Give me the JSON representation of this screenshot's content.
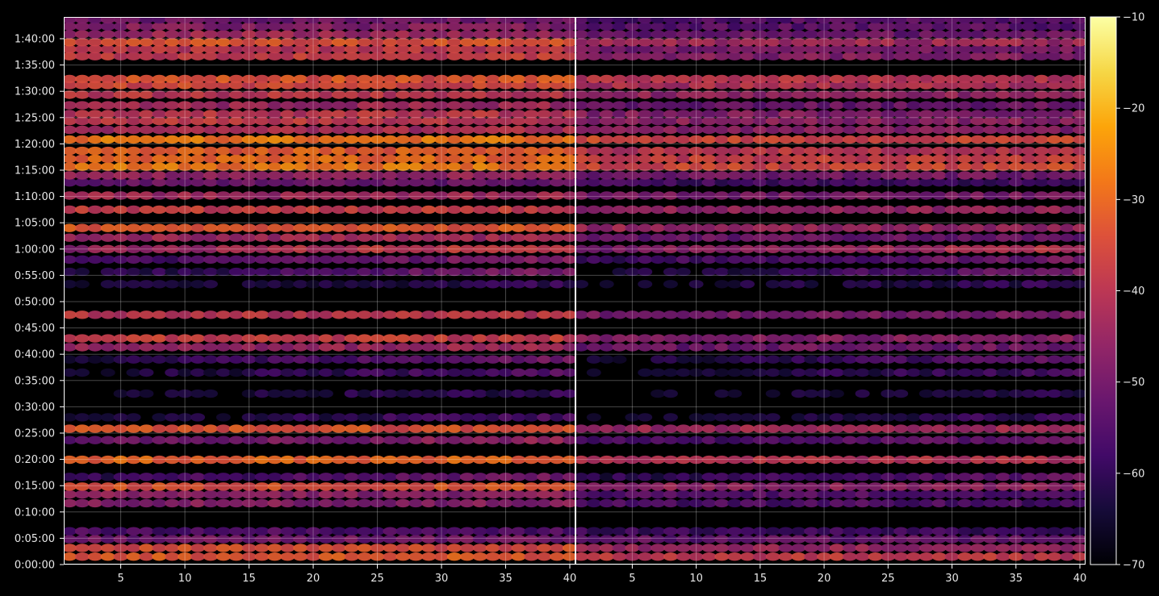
{
  "chart_data": {
    "type": "heatmap",
    "title": "",
    "xlabel": "",
    "ylabel": "",
    "colormap": "inferno",
    "background": "#000000",
    "panels": [
      {
        "name": "",
        "x_range": [
          1,
          40
        ],
        "x_ticks": [
          5,
          10,
          15,
          20,
          25,
          30,
          35,
          40
        ]
      },
      {
        "name": "",
        "x_range": [
          1,
          40
        ],
        "x_ticks": [
          5,
          10,
          15,
          20,
          25,
          30,
          35,
          40
        ]
      }
    ],
    "x_tick_labels": [
      "5",
      "10",
      "15",
      "20",
      "25",
      "30",
      "35",
      "40"
    ],
    "y_range_seconds": [
      0,
      6240
    ],
    "y_ticks": [
      {
        "value": 0,
        "label": "0:00:00"
      },
      {
        "value": 300,
        "label": "0:05:00"
      },
      {
        "value": 600,
        "label": "0:10:00"
      },
      {
        "value": 900,
        "label": "0:15:00"
      },
      {
        "value": 1200,
        "label": "0:20:00"
      },
      {
        "value": 1500,
        "label": "0:25:00"
      },
      {
        "value": 1800,
        "label": "0:30:00"
      },
      {
        "value": 2100,
        "label": "0:35:00"
      },
      {
        "value": 2400,
        "label": "0:40:00"
      },
      {
        "value": 2700,
        "label": "0:45:00"
      },
      {
        "value": 3000,
        "label": "0:50:00"
      },
      {
        "value": 3300,
        "label": "0:55:00"
      },
      {
        "value": 3600,
        "label": "1:00:00"
      },
      {
        "value": 3900,
        "label": "1:05:00"
      },
      {
        "value": 4200,
        "label": "1:10:00"
      },
      {
        "value": 4500,
        "label": "1:15:00"
      },
      {
        "value": 4800,
        "label": "1:20:00"
      },
      {
        "value": 5100,
        "label": "1:25:00"
      },
      {
        "value": 5400,
        "label": "1:30:00"
      },
      {
        "value": 5700,
        "label": "1:35:00"
      },
      {
        "value": 6000,
        "label": "1:40:00"
      }
    ],
    "grid": true,
    "colorbar": {
      "range": [
        -70,
        -10
      ],
      "ticks": [
        -10,
        -20,
        -30,
        -40,
        -50,
        -60,
        -70
      ],
      "tick_labels": [
        "−10",
        "−20",
        "−30",
        "−40",
        "−50",
        "−60",
        "−70"
      ],
      "placement": "right"
    },
    "bands": [
      {
        "t": 90,
        "level": -33,
        "trend": 0,
        "panel2_offset": -6
      },
      {
        "t": 190,
        "level": -35,
        "trend": 0,
        "panel2_offset": -10
      },
      {
        "t": 290,
        "level": -51,
        "trend": 0,
        "panel2_offset": -2
      },
      {
        "t": 380,
        "level": -56,
        "trend": 0,
        "panel2_offset": -2
      },
      {
        "t": 700,
        "level": -48,
        "trend": 0,
        "panel2_offset": -8
      },
      {
        "t": 800,
        "level": -47,
        "trend": 0,
        "panel2_offset": -8
      },
      {
        "t": 890,
        "level": -34,
        "trend": 0,
        "panel2_offset": -12
      },
      {
        "t": 1000,
        "level": -60,
        "trend": 10,
        "panel2_offset": -2
      },
      {
        "t": 1195,
        "level": -31,
        "trend": 0,
        "panel2_offset": -10
      },
      {
        "t": 1420,
        "level": -52,
        "trend": 6,
        "panel2_offset": -6
      },
      {
        "t": 1550,
        "level": -34,
        "trend": 0,
        "panel2_offset": -10
      },
      {
        "t": 1680,
        "level": -66,
        "trend": 10,
        "panel2_offset": -2
      },
      {
        "t": 1950,
        "level": -66,
        "trend": 6,
        "panel2_offset": -2
      },
      {
        "t": 2190,
        "level": -66,
        "trend": 12,
        "panel2_offset": -2
      },
      {
        "t": 2340,
        "level": -64,
        "trend": 14,
        "panel2_offset": -2
      },
      {
        "t": 2480,
        "level": -46,
        "trend": 2,
        "panel2_offset": -6
      },
      {
        "t": 2580,
        "level": -38,
        "trend": 0,
        "panel2_offset": -10
      },
      {
        "t": 2850,
        "level": -40,
        "trend": 0,
        "panel2_offset": -10
      },
      {
        "t": 3200,
        "level": -66,
        "trend": 6,
        "panel2_offset": 0
      },
      {
        "t": 3340,
        "level": -64,
        "trend": 16,
        "panel2_offset": -2
      },
      {
        "t": 3480,
        "level": -58,
        "trend": 10,
        "panel2_offset": -2
      },
      {
        "t": 3600,
        "level": -46,
        "trend": 10,
        "panel2_offset": -4
      },
      {
        "t": 3730,
        "level": -44,
        "trend": 0,
        "panel2_offset": -8
      },
      {
        "t": 3840,
        "level": -33,
        "trend": 0,
        "panel2_offset": -12
      },
      {
        "t": 4050,
        "level": -38,
        "trend": 0,
        "panel2_offset": -8
      },
      {
        "t": 4210,
        "level": -44,
        "trend": 0,
        "panel2_offset": -6
      },
      {
        "t": 4360,
        "level": -52,
        "trend": 0,
        "panel2_offset": -6
      },
      {
        "t": 4440,
        "level": -46,
        "trend": 0,
        "panel2_offset": -4
      },
      {
        "t": 4540,
        "level": -28,
        "trend": 0,
        "panel2_offset": -8
      },
      {
        "t": 4630,
        "level": -30,
        "trend": 0,
        "panel2_offset": -8
      },
      {
        "t": 4720,
        "level": -32,
        "trend": 0,
        "panel2_offset": -8
      },
      {
        "t": 4850,
        "level": -28,
        "trend": 0,
        "panel2_offset": -8
      },
      {
        "t": 4960,
        "level": -42,
        "trend": 0,
        "panel2_offset": -6
      },
      {
        "t": 5060,
        "level": -39,
        "trend": 0,
        "panel2_offset": -8
      },
      {
        "t": 5140,
        "level": -40,
        "trend": 0,
        "panel2_offset": -8
      },
      {
        "t": 5240,
        "level": -44,
        "trend": 0,
        "panel2_offset": -8
      },
      {
        "t": 5360,
        "level": -40,
        "trend": 0,
        "panel2_offset": -6
      },
      {
        "t": 5470,
        "level": -36,
        "trend": 0,
        "panel2_offset": -6
      },
      {
        "t": 5540,
        "level": -34,
        "trend": 0,
        "panel2_offset": -6
      },
      {
        "t": 5800,
        "level": -38,
        "trend": 0,
        "panel2_offset": -10
      },
      {
        "t": 5880,
        "level": -40,
        "trend": 0,
        "panel2_offset": -10
      },
      {
        "t": 5960,
        "level": -34,
        "trend": 0,
        "panel2_offset": -10
      },
      {
        "t": 6050,
        "level": -44,
        "trend": 0,
        "panel2_offset": -8
      },
      {
        "t": 6140,
        "level": -48,
        "trend": 0,
        "panel2_offset": -6
      },
      {
        "t": 6220,
        "level": -52,
        "trend": 2,
        "panel2_offset": -4
      }
    ]
  }
}
